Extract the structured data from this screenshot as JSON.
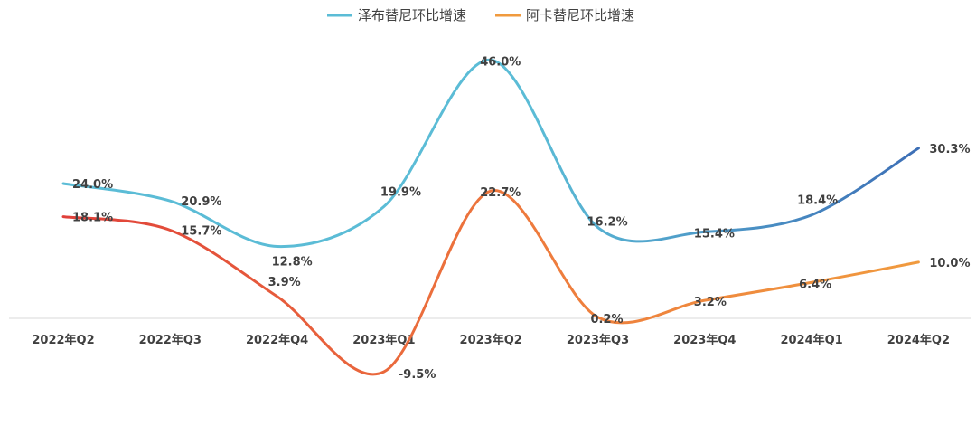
{
  "chart_data": {
    "type": "line",
    "categories": [
      "2022年Q2",
      "2022年Q3",
      "2022年Q4",
      "2023年Q1",
      "2023年Q2",
      "2023年Q3",
      "2023年Q4",
      "2024年Q1",
      "2024年Q2"
    ],
    "series": [
      {
        "name": "泽布替尼环比增速",
        "values": [
          24.0,
          20.9,
          12.8,
          19.9,
          46.0,
          16.2,
          15.4,
          18.4,
          30.3
        ],
        "labels": [
          "24.0%",
          "20.9%",
          "12.8%",
          "19.9%",
          "46.0%",
          "16.2%",
          "15.4%",
          "18.4%",
          "30.3%"
        ],
        "color_start": "#5bbcd6",
        "color_end": "#3d6fb6"
      },
      {
        "name": "阿卡替尼环比增速",
        "values": [
          18.1,
          15.7,
          3.9,
          -9.5,
          22.7,
          0.2,
          3.2,
          6.4,
          10.0
        ],
        "labels": [
          "18.1%",
          "15.7%",
          "3.9%",
          "-9.5%",
          "22.7%",
          "0.2%",
          "3.2%",
          "6.4%",
          "10.0%"
        ],
        "color_start": "#e0403a",
        "color_end": "#f09a3e"
      }
    ],
    "legend_position": "top-center",
    "grid": false,
    "ylim": [
      -15,
      50
    ],
    "axis_color": "#d9d9d9"
  }
}
